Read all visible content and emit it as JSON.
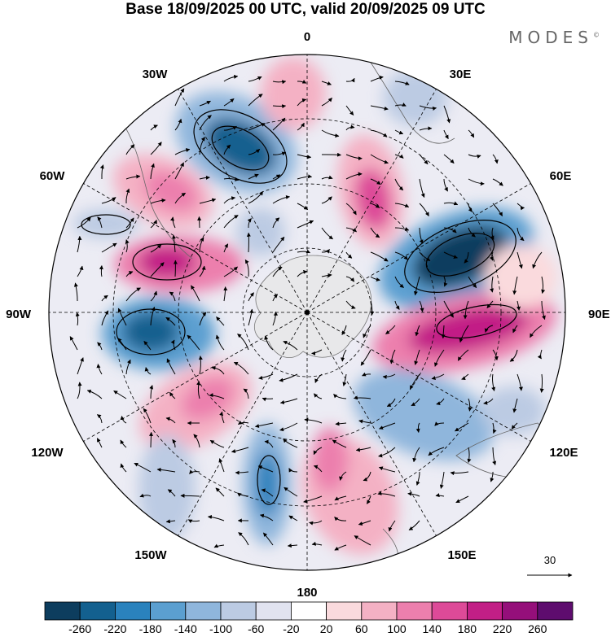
{
  "title": "Base 18/09/2025 00 UTC, valid 20/09/2025 09 UTC",
  "brand": "MODES",
  "brand_mark": "©",
  "longitude_labels": [
    {
      "id": "lon-0",
      "text": "0"
    },
    {
      "id": "lon-30e",
      "text": "30E"
    },
    {
      "id": "lon-60e",
      "text": "60E"
    },
    {
      "id": "lon-90e",
      "text": "90E"
    },
    {
      "id": "lon-120e",
      "text": "120E"
    },
    {
      "id": "lon-150e",
      "text": "150E"
    },
    {
      "id": "lon-180",
      "text": "180"
    },
    {
      "id": "lon-150w",
      "text": "150W"
    },
    {
      "id": "lon-120w",
      "text": "120W"
    },
    {
      "id": "lon-90w",
      "text": "90W"
    },
    {
      "id": "lon-60w",
      "text": "60W"
    },
    {
      "id": "lon-30w",
      "text": "30W"
    }
  ],
  "vector_scale": {
    "label": "30",
    "icon": "arrow-right-icon"
  },
  "colorbar": {
    "tick_labels": [
      "-260",
      "-220",
      "-180",
      "-140",
      "-100",
      "-60",
      "-20",
      "20",
      "60",
      "100",
      "140",
      "180",
      "220",
      "260"
    ],
    "colors": [
      "#0d3d5e",
      "#13608f",
      "#2a82bd",
      "#5b9fd0",
      "#8fb6dc",
      "#bccbe3",
      "#e1e3f0",
      "#ffffff",
      "#fadadd",
      "#f4b1c4",
      "#ec7fad",
      "#dd4a98",
      "#c21f86",
      "#950f7a",
      "#5e0c6e"
    ]
  },
  "anomaly_cells": [
    {
      "name": "negative-anomaly-south-atlantic",
      "value": -240
    },
    {
      "name": "positive-anomaly-south-africa",
      "value": 160
    },
    {
      "name": "negative-anomaly-indian-ocean",
      "value": -260
    },
    {
      "name": "positive-anomaly-east-indian",
      "value": 220
    },
    {
      "name": "negative-anomaly-south-of-australia",
      "value": -140
    },
    {
      "name": "positive-anomaly-tasman",
      "value": 140
    },
    {
      "name": "negative-anomaly-ross-sea",
      "value": -160
    },
    {
      "name": "positive-anomaly-south-pacific",
      "value": 120
    },
    {
      "name": "negative-anomaly-bellingshausen",
      "value": -240
    },
    {
      "name": "positive-anomaly-drake-passage",
      "value": 180
    },
    {
      "name": "positive-anomaly-patagonia",
      "value": 140
    },
    {
      "name": "negative-anomaly-weddell",
      "value": -80
    }
  ]
}
